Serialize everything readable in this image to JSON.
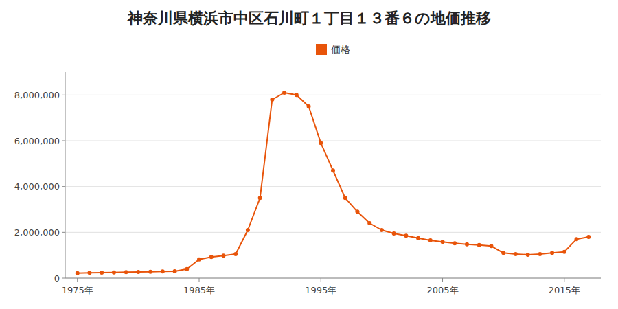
{
  "chart_data": {
    "type": "line",
    "title": "神奈川県横浜市中区石川町１丁目１３番６の地価推移",
    "x": [
      1975,
      1976,
      1977,
      1978,
      1979,
      1980,
      1981,
      1982,
      1983,
      1984,
      1985,
      1986,
      1987,
      1988,
      1989,
      1990,
      1991,
      1992,
      1993,
      1994,
      1995,
      1996,
      1997,
      1998,
      1999,
      2000,
      2001,
      2002,
      2003,
      2004,
      2005,
      2006,
      2007,
      2008,
      2009,
      2010,
      2011,
      2012,
      2013,
      2014,
      2015,
      2016,
      2017
    ],
    "series": [
      {
        "name": "価格",
        "color": "#e8540a",
        "marker": "circle",
        "values": [
          220000,
          230000,
          240000,
          250000,
          260000,
          270000,
          280000,
          290000,
          300000,
          400000,
          820000,
          920000,
          980000,
          1050000,
          2100000,
          3500000,
          7800000,
          8100000,
          8000000,
          7500000,
          5900000,
          4700000,
          3500000,
          2900000,
          2400000,
          2100000,
          1950000,
          1850000,
          1750000,
          1650000,
          1580000,
          1520000,
          1480000,
          1450000,
          1400000,
          1100000,
          1050000,
          1020000,
          1050000,
          1100000,
          1150000,
          1700000,
          1800000
        ]
      }
    ],
    "xlim": [
      1974,
      2018
    ],
    "xticks": [
      {
        "value": 1975,
        "label": "1975年"
      },
      {
        "value": 1985,
        "label": "1985年"
      },
      {
        "value": 1995,
        "label": "1995年"
      },
      {
        "value": 2005,
        "label": "2005年"
      },
      {
        "value": 2015,
        "label": "2015年"
      }
    ],
    "ylim": [
      0,
      9000000
    ],
    "yticks": [
      0,
      {
        "value": 2000000,
        "label": "2,000,000"
      },
      {
        "value": 4000000,
        "label": "4,000,000"
      },
      {
        "value": 6000000,
        "label": "6,000,000"
      },
      {
        "value": 8000000,
        "label": "8,000,000"
      }
    ],
    "grid": true,
    "legend": "top"
  }
}
